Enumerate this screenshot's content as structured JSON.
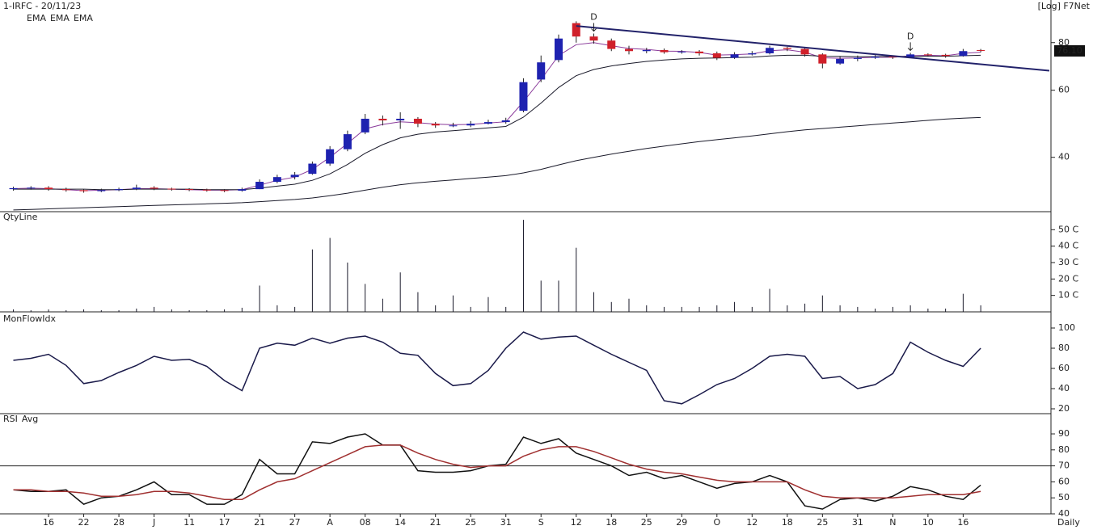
{
  "chart_data": [
    {
      "type": "candlestick",
      "title": "1-IRFC - 20/11/23",
      "note": "[Log] F7Net",
      "log_scale": true,
      "ylim": [
        28.8,
        101.5
      ],
      "yticks": [
        40,
        60,
        80
      ],
      "xlim": [
        -0.3,
        58.9
      ],
      "up_color": "#1e22b0",
      "down_color": "#d0202a",
      "last_value": {
        "value": 76.1,
        "label": "76.10"
      },
      "open": [
        33.0,
        33.2,
        33.3,
        33.0,
        32.8,
        32.6,
        32.8,
        33.0,
        33.3,
        33.1,
        33.0,
        32.9,
        32.8,
        32.7,
        33.0,
        34.5,
        35.5,
        36.2,
        38.5,
        42.0,
        46.5,
        50.5,
        50.0,
        50.5,
        49.0,
        48.5,
        48.5,
        49.0,
        49.5,
        53.0,
        64.0,
        72.0,
        90.0,
        83.0,
        81.0,
        77.0,
        76.0,
        76.5,
        75.5,
        75.8,
        75.0,
        73.0,
        74.5,
        75.0,
        77.5,
        77.0,
        74.5,
        70.5,
        72.5,
        73.0,
        73.5,
        73.2,
        74.5,
        74.3,
        73.8,
        76.5
      ],
      "high": [
        33.5,
        33.6,
        33.6,
        33.3,
        33.0,
        33.1,
        33.3,
        33.9,
        33.6,
        33.3,
        33.2,
        33.1,
        33.0,
        33.3,
        35.0,
        36.0,
        36.6,
        39.0,
        42.8,
        47.0,
        52.0,
        51.5,
        52.5,
        51.0,
        49.5,
        49.3,
        49.8,
        50.2,
        50.8,
        64.5,
        74.0,
        84.0,
        91.0,
        84.5,
        82.0,
        78.5,
        77.5,
        77.2,
        76.5,
        76.5,
        75.8,
        75.5,
        76.0,
        78.5,
        78.0,
        77.5,
        75.0,
        73.5,
        74.0,
        74.2,
        74.0,
        75.2,
        75.0,
        74.8,
        77.0,
        77.0
      ],
      "low": [
        32.7,
        32.9,
        32.7,
        32.5,
        32.3,
        32.4,
        32.6,
        32.8,
        32.8,
        32.7,
        32.6,
        32.5,
        32.4,
        32.5,
        33.0,
        34.2,
        35.0,
        36.0,
        38.0,
        41.5,
        46.0,
        48.5,
        47.5,
        48.0,
        47.8,
        48.0,
        48.0,
        48.8,
        49.0,
        52.5,
        63.0,
        71.0,
        80.0,
        79.5,
        76.0,
        74.5,
        75.0,
        74.8,
        74.8,
        74.0,
        72.0,
        72.5,
        74.0,
        74.5,
        76.0,
        73.5,
        68.5,
        70.0,
        71.5,
        72.5,
        72.5,
        73.0,
        73.5,
        73.0,
        73.5,
        75.5
      ],
      "close": [
        33.2,
        33.3,
        33.0,
        32.8,
        32.6,
        32.8,
        33.0,
        33.3,
        33.1,
        33.0,
        32.9,
        32.8,
        32.7,
        33.0,
        34.5,
        35.5,
        36.0,
        38.5,
        42.0,
        46.0,
        50.5,
        50.0,
        50.5,
        49.0,
        48.5,
        48.5,
        49.0,
        49.5,
        50.0,
        63.0,
        71.0,
        82.0,
        83.0,
        81.0,
        77.0,
        76.0,
        76.5,
        75.5,
        75.8,
        75.0,
        73.0,
        74.5,
        75.0,
        77.5,
        77.0,
        74.5,
        70.5,
        72.5,
        73.0,
        73.5,
        73.2,
        74.5,
        74.3,
        73.8,
        76.0,
        76.1
      ],
      "series": [
        {
          "name": "EMA",
          "color": "#8a3a9a",
          "values": [
            33.1,
            33.2,
            33.1,
            32.9,
            32.7,
            32.8,
            32.9,
            33.1,
            33.1,
            33.0,
            32.9,
            32.8,
            32.8,
            32.9,
            33.8,
            34.8,
            35.5,
            37.2,
            40.0,
            43.5,
            47.5,
            48.8,
            49.6,
            49.3,
            48.9,
            48.7,
            48.8,
            49.2,
            49.6,
            56.0,
            64.0,
            74.0,
            79.0,
            80.0,
            78.5,
            77.2,
            76.8,
            76.0,
            75.9,
            75.4,
            74.2,
            74.4,
            74.7,
            76.2,
            76.6,
            75.5,
            73.0,
            72.8,
            72.9,
            73.2,
            73.2,
            73.9,
            74.1,
            73.9,
            75.0,
            75.5
          ]
        },
        {
          "name": "EMA",
          "color": "#1a1a2a",
          "values": [
            33.0,
            33.0,
            33.0,
            33.0,
            33.0,
            32.9,
            32.9,
            33.0,
            33.0,
            33.0,
            33.0,
            32.9,
            32.9,
            32.9,
            33.2,
            33.6,
            34.0,
            34.8,
            36.2,
            38.3,
            41.0,
            43.2,
            45.0,
            46.0,
            46.6,
            47.0,
            47.4,
            47.8,
            48.2,
            51.0,
            55.5,
            61.0,
            65.5,
            68.0,
            69.5,
            70.5,
            71.4,
            72.0,
            72.5,
            72.8,
            72.9,
            73.1,
            73.3,
            73.8,
            74.1,
            74.1,
            73.7,
            73.6,
            73.5,
            73.5,
            73.5,
            73.6,
            73.7,
            73.7,
            73.9,
            74.1
          ]
        },
        {
          "name": "EMA",
          "color": "#1a1a2a",
          "values": [
            29.1,
            29.2,
            29.3,
            29.4,
            29.5,
            29.6,
            29.7,
            29.8,
            29.9,
            30.0,
            30.1,
            30.2,
            30.3,
            30.4,
            30.6,
            30.8,
            31.0,
            31.3,
            31.7,
            32.2,
            32.8,
            33.4,
            33.9,
            34.3,
            34.6,
            34.9,
            35.2,
            35.5,
            35.8,
            36.4,
            37.2,
            38.2,
            39.2,
            40.0,
            40.8,
            41.5,
            42.2,
            42.8,
            43.4,
            44.0,
            44.5,
            45.0,
            45.5,
            46.1,
            46.7,
            47.2,
            47.6,
            48.0,
            48.4,
            48.8,
            49.2,
            49.6,
            50.0,
            50.4,
            50.7,
            50.9
          ]
        }
      ],
      "trendline": {
        "color": "#22226a",
        "x": [
          32,
          58.9
        ],
        "values": [
          88.5,
          67.5
        ]
      },
      "annotations": [
        {
          "text": "D",
          "x": 33,
          "value": 84.5
        },
        {
          "text": "D",
          "x": 51,
          "value": 75.2
        }
      ]
    },
    {
      "type": "bar",
      "title": "QtyLine",
      "color": "#1a1a2a",
      "ylim": [
        0,
        59
      ],
      "xlim": [
        -0.3,
        58.9
      ],
      "yticks": [
        {
          "value": 10,
          "label": "10 C"
        },
        {
          "value": 20,
          "label": "20 C"
        },
        {
          "value": 30,
          "label": "30 C"
        },
        {
          "value": 40,
          "label": "40 C"
        },
        {
          "value": 50,
          "label": "50 C"
        }
      ],
      "values": [
        1.5,
        1,
        1.5,
        1,
        1.5,
        1,
        1,
        2,
        3,
        1.5,
        1,
        1,
        1.5,
        2.5,
        16,
        4,
        3,
        38,
        45,
        30,
        17,
        8,
        24,
        12,
        4,
        10,
        3,
        9,
        3,
        56,
        19,
        19,
        39,
        12,
        6,
        8,
        4,
        3,
        3,
        3,
        4,
        6,
        3,
        14,
        4,
        5,
        10,
        4,
        3,
        2,
        3,
        4,
        2,
        2,
        11,
        4
      ]
    },
    {
      "type": "line",
      "ylim": [
        15.2,
        108
      ],
      "yticks": [
        20,
        40,
        60,
        80,
        100
      ],
      "xlim": [
        -0.3,
        58.9
      ],
      "series": [
        {
          "name": "MonFlowIdx",
          "color": "#1a1a4a",
          "values": [
            68,
            70,
            74,
            63,
            45,
            48,
            56,
            63,
            72,
            68,
            69,
            62,
            48,
            38,
            80,
            85,
            83,
            90,
            85,
            90,
            92,
            86,
            75,
            73,
            55,
            43,
            45,
            58,
            80,
            96,
            89,
            91,
            92,
            83,
            74,
            66,
            58,
            28,
            25,
            34,
            44,
            50,
            60,
            72,
            74,
            72,
            50,
            52,
            40,
            44,
            55,
            86,
            76,
            68,
            62,
            80
          ]
        }
      ]
    },
    {
      "type": "line",
      "ylim": [
        40,
        98.6
      ],
      "yticks": [
        40,
        50,
        60,
        70,
        80,
        90
      ],
      "xlim": [
        -0.3,
        58.9
      ],
      "hline": 70,
      "timeframe": "Daily",
      "series": [
        {
          "name": "RSI",
          "color": "#111111",
          "values": [
            55,
            54,
            54,
            55,
            46,
            50,
            51,
            55,
            60,
            52,
            52,
            46,
            46,
            52,
            74,
            65,
            65,
            85,
            84,
            88,
            90,
            83,
            83,
            67,
            66,
            66,
            67,
            70,
            71,
            88,
            84,
            87,
            78,
            74,
            70,
            64,
            66,
            62,
            64,
            60,
            56,
            59,
            60,
            64,
            60,
            45,
            43,
            49,
            50,
            48,
            51,
            57,
            55,
            51,
            49,
            58
          ]
        },
        {
          "name": "Avg",
          "color": "#a03030",
          "values": [
            55,
            55,
            54,
            54,
            53,
            51,
            51,
            52,
            54,
            54,
            53,
            51,
            49,
            49,
            55,
            60,
            62,
            67,
            72,
            77,
            82,
            83,
            83,
            78,
            74,
            71,
            69,
            70,
            70,
            76,
            80,
            82,
            82,
            79,
            75,
            71,
            68,
            66,
            65,
            63,
            61,
            60,
            60,
            60,
            60,
            55,
            51,
            50,
            50,
            50,
            50,
            51,
            52,
            52,
            52,
            54
          ]
        }
      ],
      "xticks": [
        {
          "value": 2,
          "label": "16"
        },
        {
          "value": 4,
          "label": "22"
        },
        {
          "value": 6,
          "label": "28"
        },
        {
          "value": 8,
          "label": "J"
        },
        {
          "value": 10,
          "label": "11"
        },
        {
          "value": 12,
          "label": "17"
        },
        {
          "value": 14,
          "label": "21"
        },
        {
          "value": 16,
          "label": "27"
        },
        {
          "value": 18,
          "label": "A"
        },
        {
          "value": 20,
          "label": "08"
        },
        {
          "value": 22,
          "label": "14"
        },
        {
          "value": 24,
          "label": "21"
        },
        {
          "value": 26,
          "label": "25"
        },
        {
          "value": 28,
          "label": "31"
        },
        {
          "value": 30,
          "label": "S"
        },
        {
          "value": 32,
          "label": "12"
        },
        {
          "value": 34,
          "label": "18"
        },
        {
          "value": 36,
          "label": "25"
        },
        {
          "value": 38,
          "label": "29"
        },
        {
          "value": 40,
          "label": "O"
        },
        {
          "value": 42,
          "label": "12"
        },
        {
          "value": 44,
          "label": "18"
        },
        {
          "value": 46,
          "label": "25"
        },
        {
          "value": 48,
          "label": "31"
        },
        {
          "value": 50,
          "label": "N"
        },
        {
          "value": 52,
          "label": "10"
        },
        {
          "value": 54,
          "label": "16"
        }
      ]
    }
  ]
}
